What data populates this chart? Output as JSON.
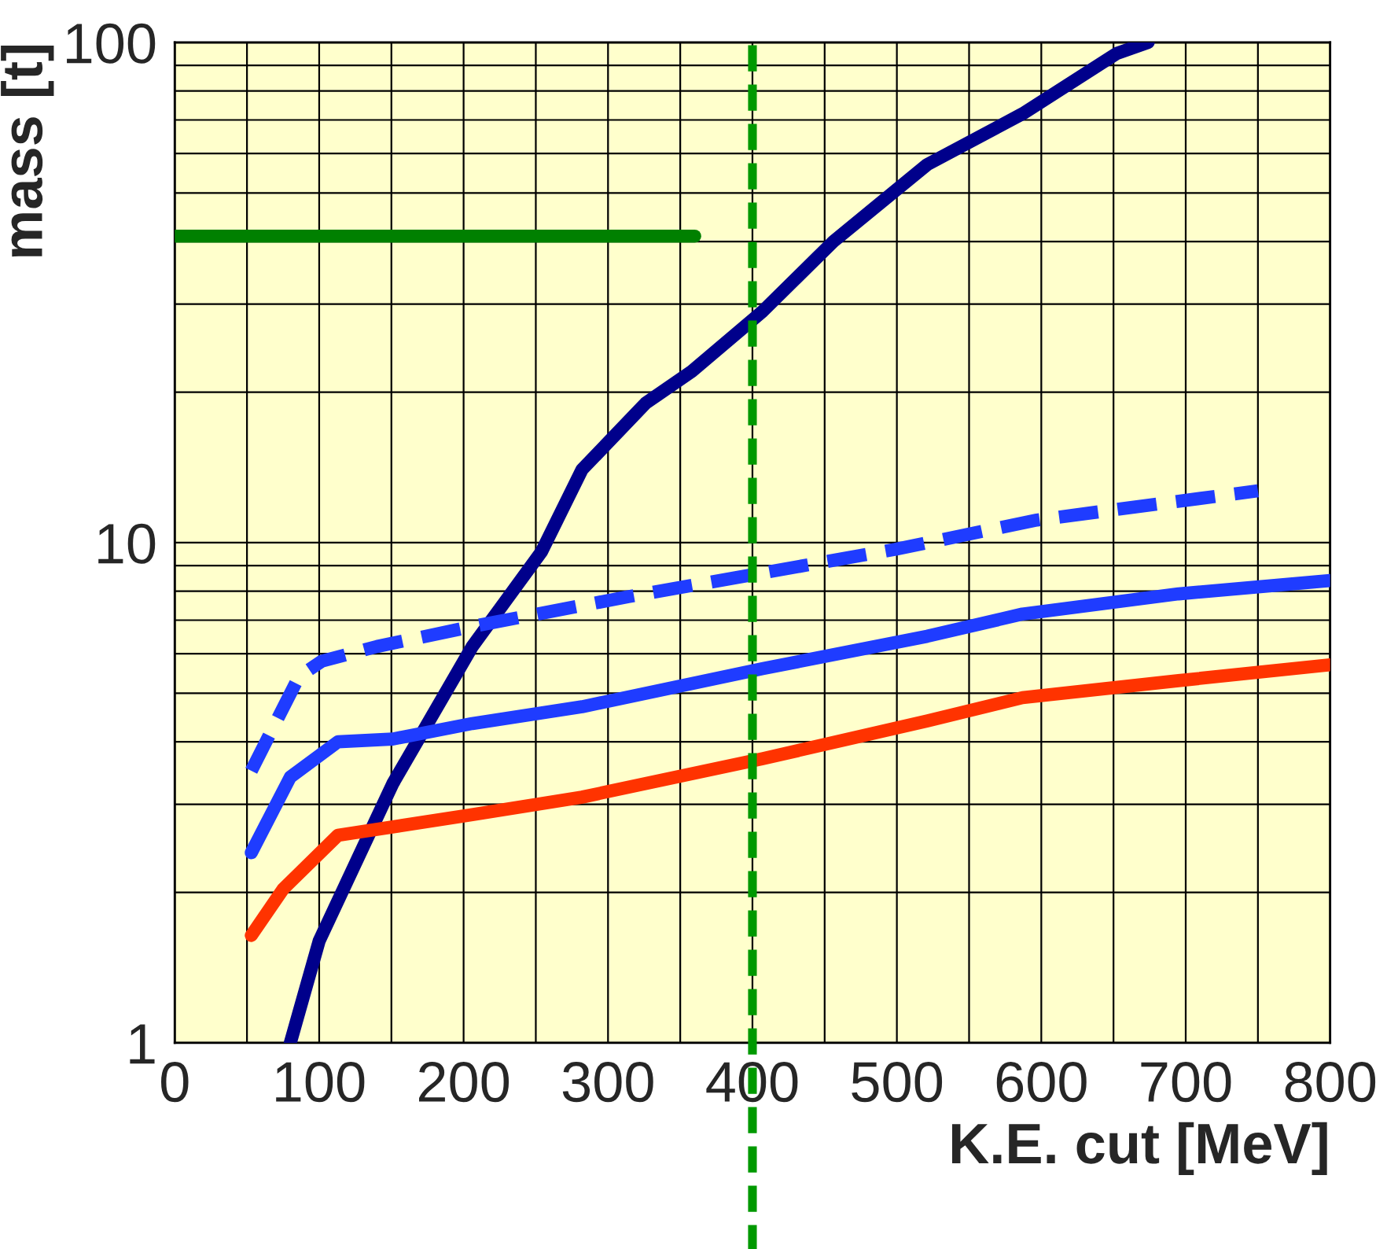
{
  "chart_data": {
    "type": "line",
    "xlabel": "K.E. cut [MeV]",
    "ylabel": "mass [t]",
    "log": "y",
    "xlim": [
      0,
      800
    ],
    "ylim": [
      1,
      100
    ],
    "xticks": [
      0,
      100,
      200,
      300,
      400,
      500,
      600,
      700,
      800
    ],
    "yticks": [
      1,
      10,
      100
    ],
    "grid": true,
    "marker": "none",
    "series": [
      {
        "color": "#00008b",
        "line_style": "solid",
        "x": [
          80,
          100,
          151,
          206,
          254,
          282,
          326,
          358,
          407,
          456,
          521,
          587,
          652,
          674
        ],
        "values": [
          1,
          1.6,
          3.3,
          6.2,
          9.6,
          14,
          19,
          22,
          29,
          40,
          57,
          72,
          95,
          100
        ]
      },
      {
        "color": "#1f3cff",
        "line_style": "dashed",
        "x": [
          53,
          86,
          102,
          140,
          206,
          314,
          407,
          499,
          597,
          750
        ],
        "values": [
          3.5,
          5.4,
          5.8,
          6.2,
          6.8,
          7.8,
          8.7,
          9.7,
          11.1,
          12.7
        ]
      },
      {
        "color": "#1f3cff",
        "line_style": "solid",
        "x": [
          53,
          80,
          113,
          151,
          206,
          282,
          407,
          521,
          587,
          695,
          800
        ],
        "values": [
          2.4,
          3.4,
          4,
          4.05,
          4.35,
          4.7,
          5.6,
          6.5,
          7.2,
          7.9,
          8.4
        ]
      },
      {
        "color": "#ff3300",
        "line_style": "solid",
        "x": [
          53,
          75,
          113,
          206,
          282,
          407,
          521,
          587,
          695,
          800
        ],
        "values": [
          1.64,
          2.03,
          2.6,
          2.86,
          3.1,
          3.7,
          4.4,
          4.9,
          5.3,
          5.7
        ]
      },
      {
        "color": "#008000",
        "line_style": "solid",
        "x": [
          0,
          360
        ],
        "values": [
          41,
          41
        ]
      }
    ],
    "ref_lines": [
      {
        "axis": "x",
        "value": 400,
        "color": "#009900",
        "line_style": "dashed"
      }
    ]
  }
}
